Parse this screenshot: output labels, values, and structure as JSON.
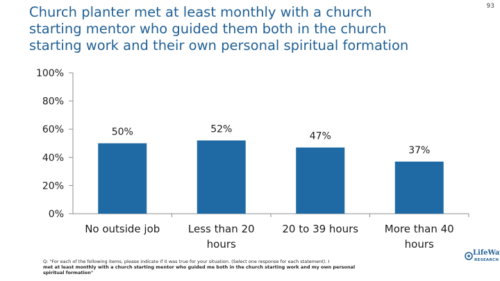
{
  "page_number": "93",
  "title_lines": [
    "Church planter met at least monthly with a church",
    "starting mentor who guided them both in the church",
    "starting work and their own personal spiritual formation"
  ],
  "chart_data": {
    "type": "bar",
    "title": "Church planter met at least monthly with a church starting mentor who guided them both in the church starting work and their own personal spiritual formation",
    "categories": [
      [
        "No outside job"
      ],
      [
        "Less than 20",
        "hours"
      ],
      [
        "20 to 39 hours"
      ],
      [
        "More than 40",
        "hours"
      ]
    ],
    "values": [
      50,
      52,
      47,
      37
    ],
    "value_labels": [
      "50%",
      "52%",
      "47%",
      "37%"
    ],
    "ylim": [
      0,
      100
    ],
    "yticks": [
      0,
      20,
      40,
      60,
      80,
      100
    ],
    "ytick_labels": [
      "0%",
      "20%",
      "40%",
      "60%",
      "80%",
      "100%"
    ],
    "grid": false,
    "legend": "none",
    "bar_color": "#1f6aa5",
    "axis_color": "#8c8c8c"
  },
  "footnote": {
    "question": "Q: \"For each of the following items, please indicate if it was true for your situation. (Select one response for each statement).  I",
    "option_lines": [
      "met at least monthly with a church starting mentor who guided me both in the church starting work and my own personal",
      "spiritual formation\""
    ]
  },
  "logo": {
    "brand": "LifeWay",
    "sub": "RESEARCH"
  },
  "colors": {
    "title": "#1f5f94",
    "bar": "#1f6aa5"
  }
}
